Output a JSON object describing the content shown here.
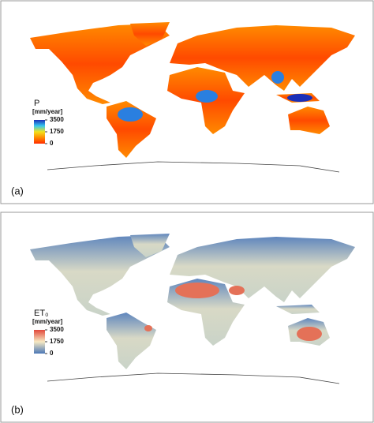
{
  "panels": [
    {
      "label": "(a)",
      "legend": {
        "title": "P",
        "unit": "[mm/year]",
        "ticks": [
          3500,
          1750,
          0
        ],
        "colors": [
          "#1a2fb8",
          "#35c8f0",
          "#f2e21c",
          "#ff8a00",
          "#ff2a00"
        ]
      }
    },
    {
      "label": "(b)",
      "legend": {
        "title": "ET₀",
        "unit": "[mm/year]",
        "ticks": [
          3500,
          1750,
          0
        ],
        "colors": [
          "#e2483a",
          "#f6e9c2",
          "#4b77b6"
        ]
      }
    }
  ]
}
